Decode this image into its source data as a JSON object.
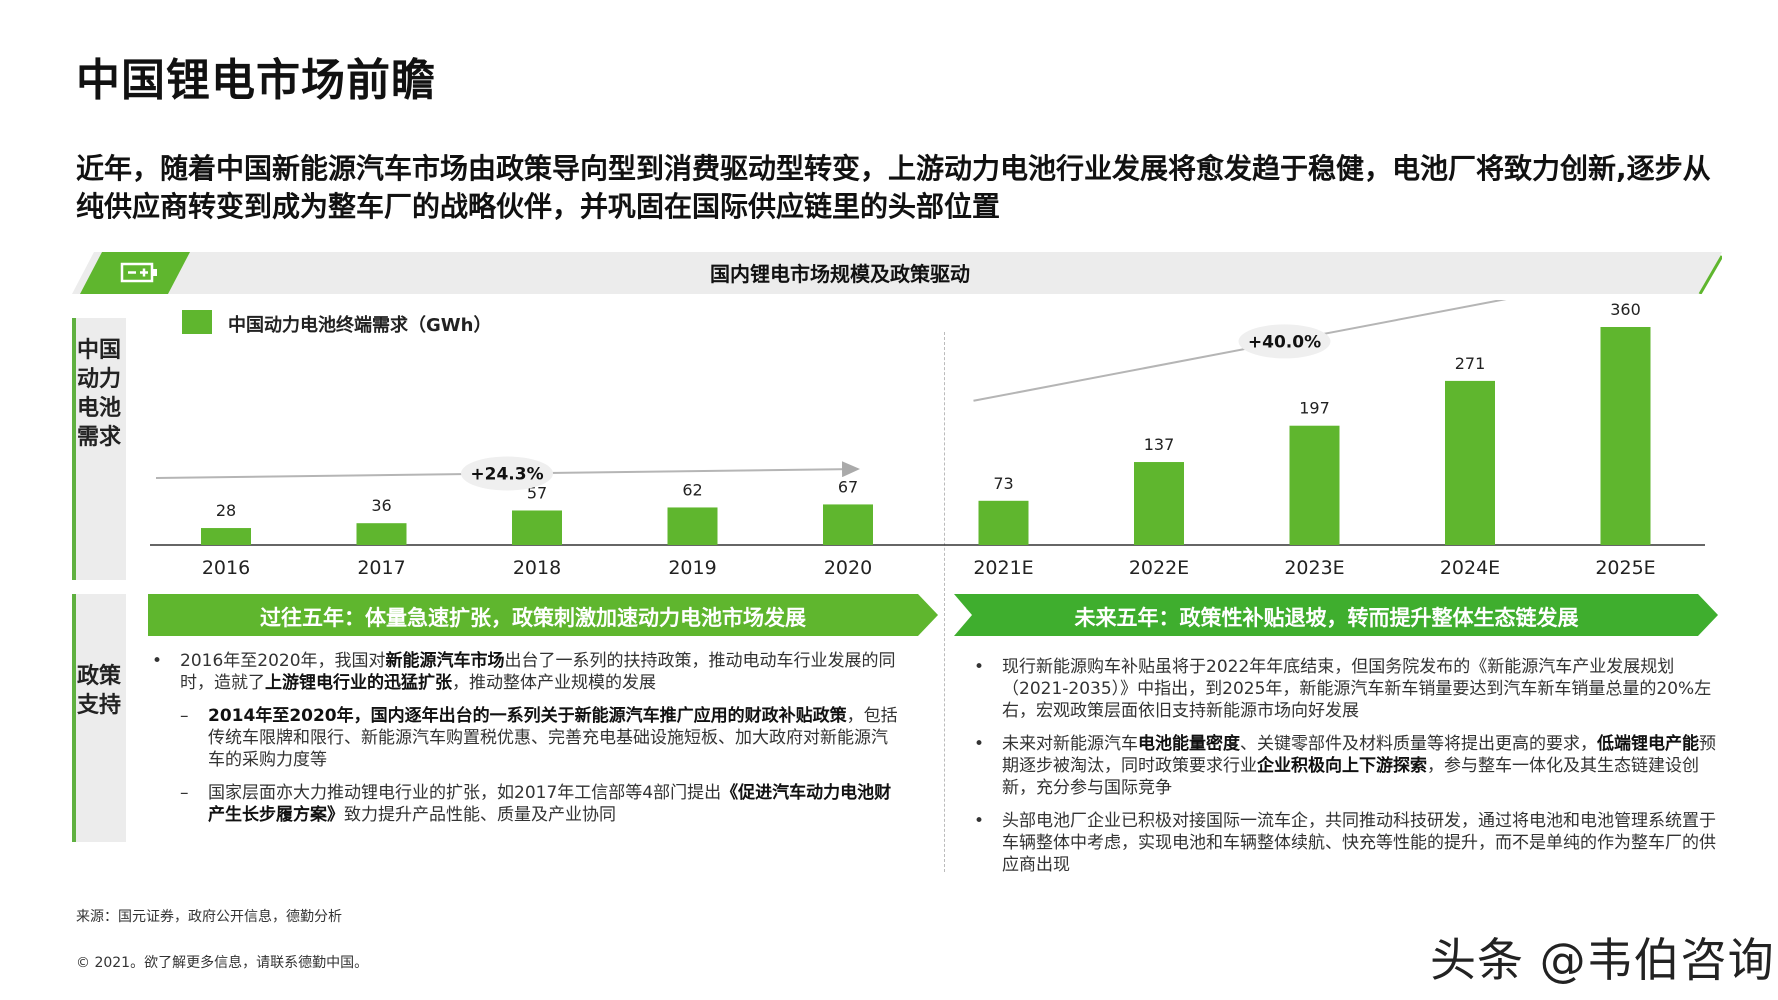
{
  "title": "中国锂电市场前瞻",
  "subtitle": "近年，随着中国新能源汽车市场由政策导向型到消费驱动型转变，上游动力电池行业发展将愈发趋于稳健，电池厂将致力创新,逐步从纯供应商转变到成为整车厂的战略伙伴，并巩固在国际供应链里的头部位置",
  "banner_title": "国内锂电市场规模及政策驱动",
  "side_demand": "中国动力电池需求",
  "side_policy": "政策支持",
  "colors": {
    "accent": "#5fb62e",
    "dark_green": "#3f9a1e",
    "gray": "#ececec"
  },
  "icons": {
    "banner": "battery-icon"
  },
  "chart_data": {
    "type": "bar",
    "legend": "中国动力电池终端需求（GWh）",
    "legend_position": "top-left",
    "categories": [
      "2016",
      "2017",
      "2018",
      "2019",
      "2020",
      "2021E",
      "2022E",
      "2023E",
      "2024E",
      "2025E"
    ],
    "values": [
      28,
      36,
      57,
      62,
      67,
      73,
      137,
      197,
      271,
      360
    ],
    "ylim": [
      0,
      360
    ],
    "grid": false,
    "annotations": [
      {
        "label": "+24.3%",
        "from": "2016",
        "to": "2020"
      },
      {
        "label": "+40.0%",
        "from": "2021E",
        "to": "2025E"
      }
    ]
  },
  "past_header": "过往五年：体量急速扩张，政策刺激加速动力电池市场发展",
  "future_header": "未来五年：政策性补贴退坡，转而提升整体生态链发展",
  "past": {
    "b1_pre": "2016年至2020年，我国对",
    "b1_bold1": "新能源汽车市场",
    "b1_mid": "出台了一系列的扶持政策，推动电动车行业发展的同时，造就了",
    "b1_bold2": "上游锂电行业的迅猛扩张",
    "b1_post": "，推动整体产业规模的发展",
    "s1_bold": "2014年至2020年，国内逐年出台的一系列关于新能源汽车推广应用的财政补贴政策",
    "s1_post": "，包括传统车限牌和限行、新能源汽车购置税优惠、完善充电基础设施短板、加大政府对新能源汽车的采购力度等",
    "s2_pre": "国家层面亦大力推动锂电行业的扩张，如2017年工信部等4部门提出",
    "s2_bold": "《促进汽车动力电池财产生长步履方案》",
    "s2_post": "致力提升产品性能、质量及产业协同"
  },
  "future": {
    "b1": "现行新能源购车补贴虽将于2022年年底结束，但国务院发布的《新能源汽车产业发展规划（2021-2035）》中指出，到2025年，新能源汽车新车销量要达到汽车新车销量总量的20%左右，宏观政策层面依旧支持新能源市场向好发展",
    "b2_pre": "未来对新能源汽车",
    "b2_bold1": "电池能量密度",
    "b2_mid1": "、关键零部件及材料质量等将提出更高的要求，",
    "b2_bold2": "低端锂电产能",
    "b2_mid2": "预期逐步被淘汰，同时政策要求行业",
    "b2_bold3": "企业积极向上下游探索",
    "b2_post": "，参与整车一体化及其生态链建设创新，充分参与国际竞争",
    "b3": "头部电池厂企业已积极对接国际一流车企，共同推动科技研发，通过将电池和电池管理系统置于车辆整体中考虑，实现电池和车辆整体续航、快充等性能的提升，而不是单纯的作为整车厂的供应商出现"
  },
  "source": "来源：国元证券，政府公开信息，德勤分析",
  "copyright": "© 2021。欲了解更多信息，请联系德勤中国。",
  "watermark": "头条 @韦伯咨询"
}
